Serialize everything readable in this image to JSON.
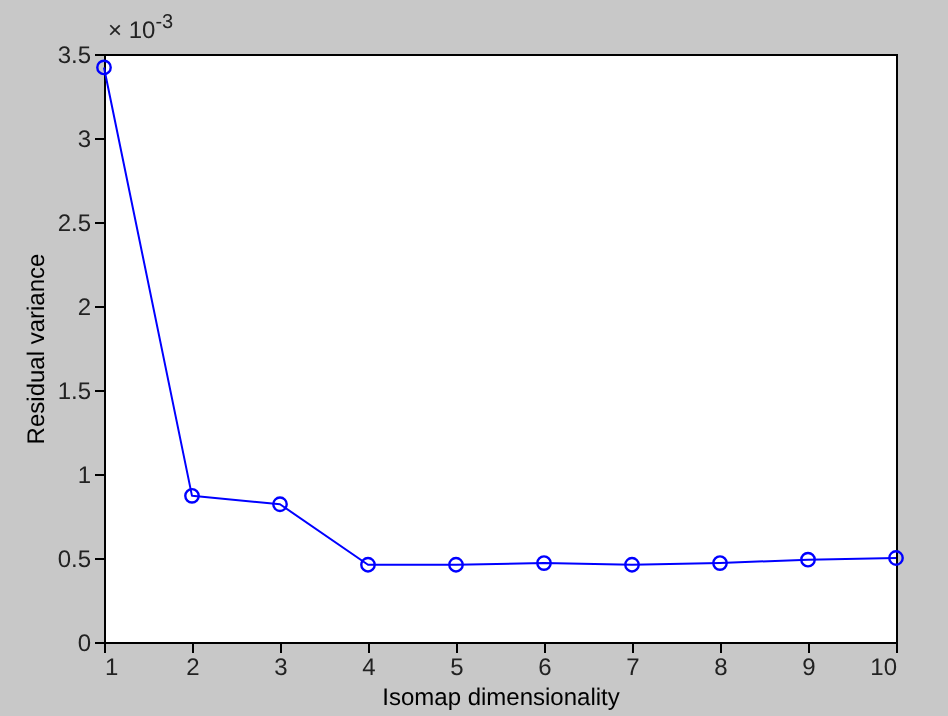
{
  "chart_data": {
    "type": "line",
    "xlabel": "Isomap dimensionality",
    "ylabel": "Residual variance",
    "annotations": [
      "× 10$^{-3}$"
    ],
    "x": [
      1,
      2,
      3,
      4,
      5,
      6,
      7,
      8,
      9,
      10
    ],
    "series": [
      {
        "color": "#0000ff",
        "values": [
          3.42,
          0.87,
          0.82,
          0.46,
          0.46,
          0.47,
          0.46,
          0.47,
          0.49,
          0.5
        ]
      }
    ],
    "xlim": [
      1,
      10
    ],
    "xticks": [
      1,
      2,
      3,
      4,
      5,
      6,
      7,
      8,
      9,
      10
    ],
    "ylim": [
      0,
      3.5
    ],
    "yticks": [
      0,
      0.5,
      1,
      1.5,
      2,
      2.5,
      3,
      3.5
    ],
    "marker": "circle",
    "line_style": "solid",
    "grid": false,
    "legend": false
  }
}
